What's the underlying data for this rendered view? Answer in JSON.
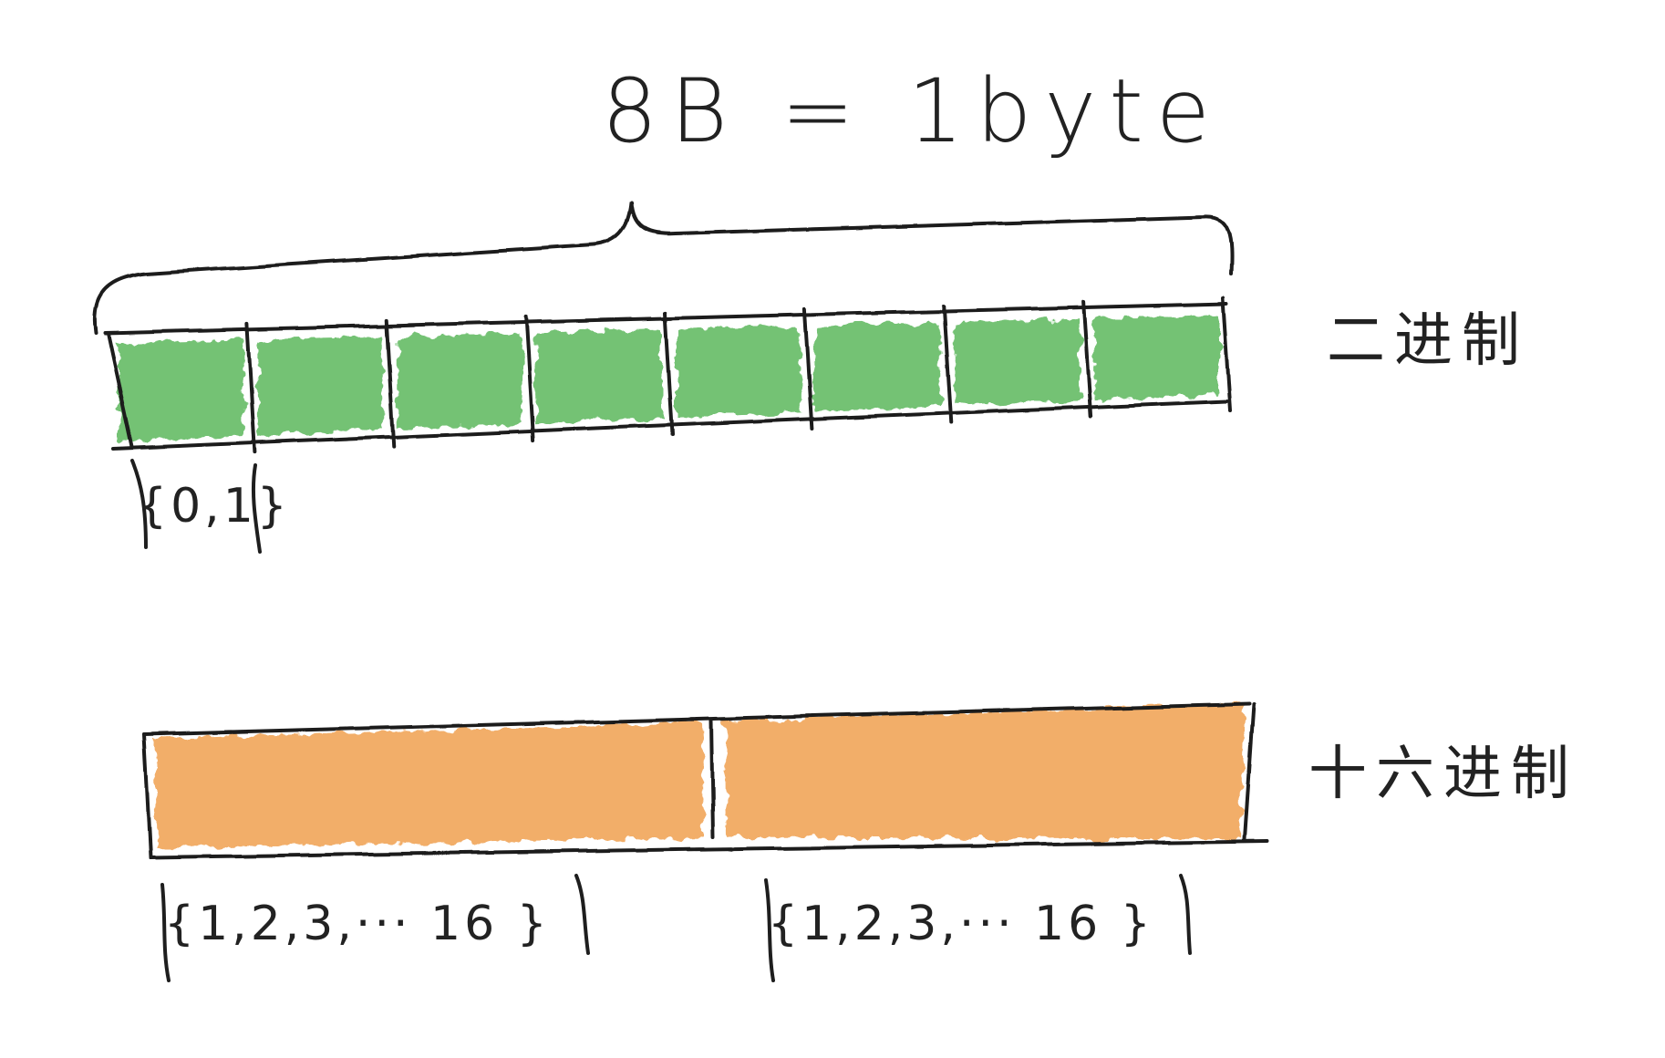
{
  "title": "8B = 1byte",
  "binary_row": {
    "label": "二进制",
    "cell_count": 8,
    "range_label": "{0,1}",
    "fill_color": "#5cb85c"
  },
  "hex_row": {
    "label": "十六进制",
    "cell_count": 2,
    "range_labels": [
      "{1,2,3,··· 16 }",
      "{1,2,3,··· 16 }"
    ],
    "fill_color": "#f0a050"
  },
  "colors": {
    "ink": "#1e1e1e",
    "binary_fill": "#5cb85c",
    "hex_fill": "#f0a050"
  }
}
